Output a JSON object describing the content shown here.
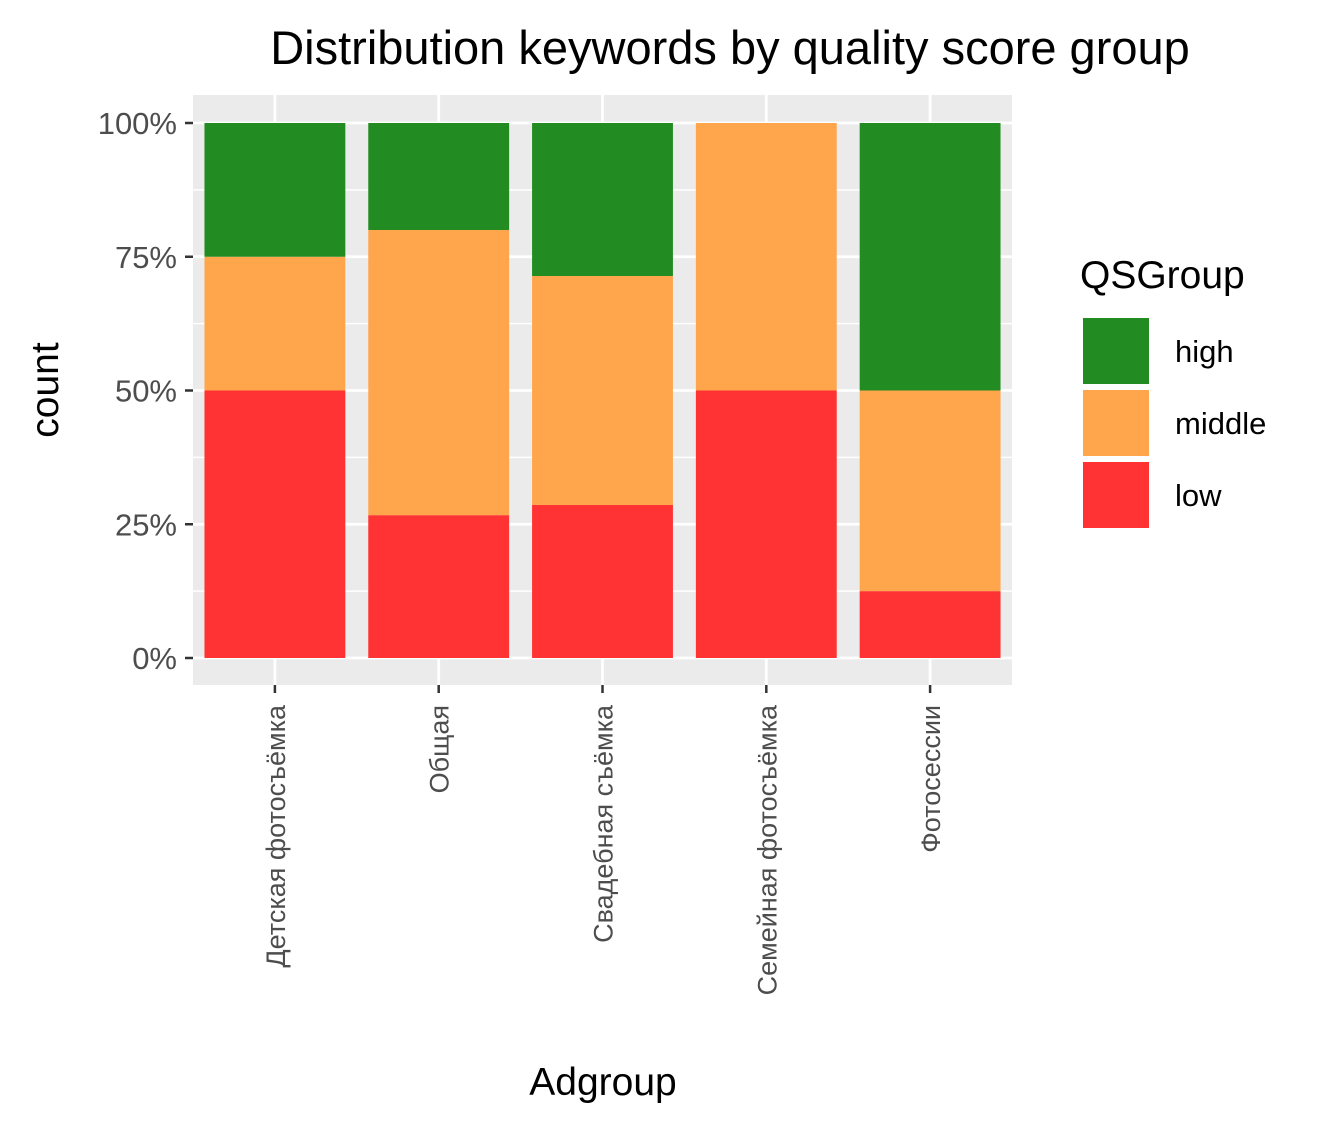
{
  "chart_data": {
    "type": "bar",
    "stacked": true,
    "percent": true,
    "title": "Distribution keywords by quality score group",
    "xlabel": "Adgroup",
    "ylabel": "count",
    "ylim": [
      0,
      1
    ],
    "yticks": [
      0,
      0.25,
      0.5,
      0.75,
      1.0
    ],
    "ytick_labels": [
      "0%",
      "25%",
      "50%",
      "75%",
      "100%"
    ],
    "grid": true,
    "categories": [
      "Детская фотосъёмка",
      "Общая",
      "Свадебная съёмка",
      "Семейная фотосъёмка",
      "Фотосессии"
    ],
    "series": [
      {
        "name": "low",
        "color": "#FF3333",
        "values": [
          0.5,
          0.267,
          0.286,
          0.5,
          0.125
        ]
      },
      {
        "name": "middle",
        "color": "#FFA64D",
        "values": [
          0.25,
          0.533,
          0.428,
          0.5,
          0.375
        ]
      },
      {
        "name": "high",
        "color": "#228B22",
        "values": [
          0.25,
          0.2,
          0.286,
          0,
          0.5
        ]
      }
    ],
    "legend": {
      "title": "QSGroup",
      "position": "right",
      "order": [
        "high",
        "middle",
        "low"
      ]
    },
    "panel_background": "#EBEBEB",
    "grid_color": "#FFFFFF"
  }
}
